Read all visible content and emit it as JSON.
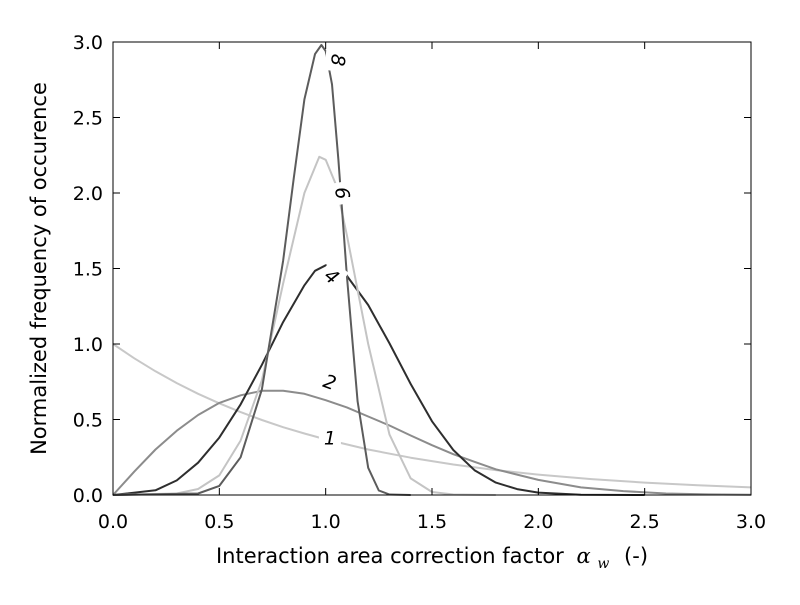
{
  "chart_data": {
    "type": "line",
    "xlabel": "Interaction area correction factor",
    "xlabel_symbol": "α",
    "xlabel_subscript": "w",
    "xlabel_unit": "(-)",
    "ylabel": "Normalized frequency of occurence",
    "xlim": [
      0.0,
      3.0
    ],
    "ylim": [
      0.0,
      3.0
    ],
    "xticks": [
      0.0,
      0.5,
      1.0,
      1.5,
      2.0,
      2.5,
      3.0
    ],
    "yticks": [
      0.0,
      0.5,
      1.0,
      1.5,
      2.0,
      2.5,
      3.0
    ],
    "xtick_labels": [
      "0.0",
      "0.5",
      "1.0",
      "1.5",
      "2.0",
      "2.5",
      "3.0"
    ],
    "ytick_labels": [
      "0.0",
      "0.5",
      "1.0",
      "1.5",
      "2.0",
      "2.5",
      "3.0"
    ],
    "grid": false,
    "legend": "none (inline curve labels)",
    "series": [
      {
        "label": "1",
        "color": "#c8c8c8",
        "label_x": 1.02,
        "label_y": 0.38,
        "label_rotate": 0,
        "x": [
          0.0,
          0.1,
          0.2,
          0.3,
          0.4,
          0.5,
          0.6,
          0.7,
          0.8,
          0.9,
          1.0,
          1.2,
          1.4,
          1.6,
          1.8,
          2.0,
          2.25,
          2.5,
          2.75,
          3.0
        ],
        "y": [
          1.0,
          0.905,
          0.819,
          0.741,
          0.67,
          0.607,
          0.549,
          0.497,
          0.449,
          0.407,
          0.368,
          0.301,
          0.247,
          0.202,
          0.165,
          0.135,
          0.105,
          0.082,
          0.064,
          0.05
        ]
      },
      {
        "label": "2",
        "color": "#8c8c8c",
        "label_x": 1.02,
        "label_y": 0.75,
        "label_rotate": 20,
        "x": [
          0.0,
          0.1,
          0.2,
          0.3,
          0.4,
          0.5,
          0.6,
          0.7,
          0.8,
          0.9,
          1.0,
          1.1,
          1.2,
          1.3,
          1.4,
          1.5,
          1.6,
          1.7,
          1.8,
          1.9,
          2.0,
          2.2,
          2.4,
          2.6,
          2.8,
          3.0
        ],
        "y": [
          0.0,
          0.155,
          0.301,
          0.426,
          0.53,
          0.61,
          0.66,
          0.69,
          0.69,
          0.67,
          0.628,
          0.58,
          0.52,
          0.46,
          0.394,
          0.33,
          0.27,
          0.22,
          0.17,
          0.135,
          0.1,
          0.05,
          0.026,
          0.01,
          0.004,
          0.002
        ]
      },
      {
        "label": "4",
        "color": "#2e2e2e",
        "label_x": 1.03,
        "label_y": 1.45,
        "label_rotate": 40,
        "x": [
          0.0,
          0.2,
          0.3,
          0.4,
          0.5,
          0.6,
          0.7,
          0.8,
          0.9,
          0.95,
          1.0,
          1.1,
          1.2,
          1.3,
          1.4,
          1.5,
          1.6,
          1.7,
          1.8,
          1.9,
          2.0,
          2.2,
          2.5
        ],
        "y": [
          0.0,
          0.031,
          0.097,
          0.214,
          0.38,
          0.6,
          0.862,
          1.145,
          1.389,
          1.485,
          1.521,
          1.451,
          1.258,
          1.004,
          0.735,
          0.488,
          0.298,
          0.164,
          0.082,
          0.039,
          0.016,
          0.002,
          0.0
        ]
      },
      {
        "label": "6",
        "color": "#c4c4c4",
        "label_x": 1.08,
        "label_y": 2.0,
        "label_rotate": 80,
        "x": [
          0.0,
          0.3,
          0.4,
          0.5,
          0.6,
          0.7,
          0.8,
          0.9,
          0.97,
          1.0,
          1.05,
          1.1,
          1.2,
          1.3,
          1.4,
          1.5,
          1.6,
          1.8
        ],
        "y": [
          0.0,
          0.01,
          0.04,
          0.13,
          0.36,
          0.76,
          1.4,
          2.0,
          2.24,
          2.22,
          2.05,
          1.72,
          1.0,
          0.4,
          0.11,
          0.02,
          0.003,
          0.0
        ]
      },
      {
        "label": "8",
        "color": "#5c5c5c",
        "label_x": 1.06,
        "label_y": 2.88,
        "label_rotate": 95,
        "x": [
          0.0,
          0.4,
          0.5,
          0.6,
          0.7,
          0.8,
          0.85,
          0.9,
          0.95,
          0.98,
          1.0,
          1.03,
          1.06,
          1.1,
          1.15,
          1.2,
          1.25,
          1.3,
          1.4
        ],
        "y": [
          0.0,
          0.01,
          0.06,
          0.25,
          0.7,
          1.55,
          2.1,
          2.62,
          2.92,
          2.98,
          2.94,
          2.72,
          2.22,
          1.45,
          0.62,
          0.18,
          0.03,
          0.003,
          0.0
        ]
      }
    ]
  }
}
